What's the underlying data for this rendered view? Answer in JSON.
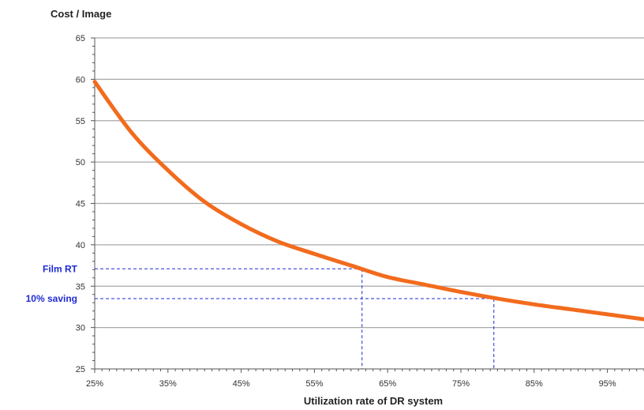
{
  "chart_data": {
    "type": "line",
    "ylabel": "Cost / Image",
    "xlabel": "Utilization rate of DR system",
    "x_ticks": [
      "25%",
      "35%",
      "45%",
      "55%",
      "65%",
      "75%",
      "85%",
      "95%"
    ],
    "y_ticks": [
      25,
      30,
      35,
      40,
      45,
      50,
      55,
      60,
      65
    ],
    "xlim": [
      0.25,
      1.0
    ],
    "ylim": [
      25,
      65
    ],
    "grid": "horizontal",
    "series": [
      {
        "color": "#f26b1d",
        "x": [
          0.25,
          0.3,
          0.35,
          0.4,
          0.45,
          0.5,
          0.55,
          0.6,
          0.65,
          0.7,
          0.75,
          0.8,
          0.85,
          0.9,
          0.95,
          1.0
        ],
        "y": [
          59.7,
          53.6,
          49.0,
          45.2,
          42.5,
          40.4,
          38.9,
          37.5,
          36.1,
          35.2,
          34.3,
          33.5,
          32.8,
          32.2,
          31.6,
          31.0
        ]
      }
    ],
    "annotations": [
      {
        "label": "Film RT",
        "y": 37.1,
        "x": 0.615,
        "color": "#1f2bd1"
      },
      {
        "label": "10% saving",
        "y": 33.5,
        "x": 0.795,
        "color": "#1f2bd1"
      }
    ]
  }
}
